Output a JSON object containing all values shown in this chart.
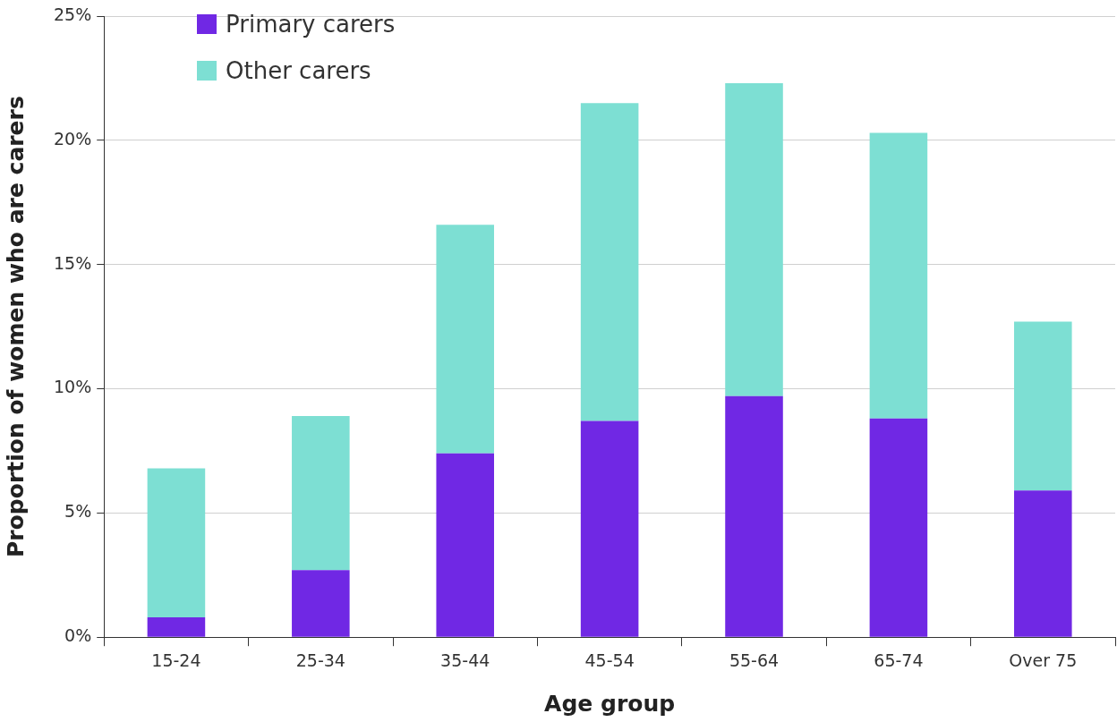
{
  "chart_data": {
    "type": "bar",
    "stacked": true,
    "xlabel": "Age group",
    "ylabel": "Proportion of women who are carers",
    "categories": [
      "15-24",
      "25-34",
      "35-44",
      "45-54",
      "55-64",
      "65-74",
      "Over 75"
    ],
    "series": [
      {
        "name": "Primary carers",
        "color": "#7028e4",
        "values": [
          0.8,
          2.7,
          7.4,
          8.7,
          9.7,
          8.8,
          5.9
        ]
      },
      {
        "name": "Other carers",
        "color": "#7ddfd3",
        "values": [
          6.0,
          6.2,
          9.2,
          12.8,
          12.6,
          11.5,
          6.8
        ]
      }
    ],
    "ylim": [
      0,
      25
    ],
    "yticks": [
      {
        "value": 0,
        "label": "0%"
      },
      {
        "value": 5,
        "label": "5%"
      },
      {
        "value": 10,
        "label": "10%"
      },
      {
        "value": 15,
        "label": "15%"
      },
      {
        "value": 20,
        "label": "20%"
      },
      {
        "value": 25,
        "label": "25%"
      }
    ],
    "grid": "y",
    "legend": "top left"
  }
}
